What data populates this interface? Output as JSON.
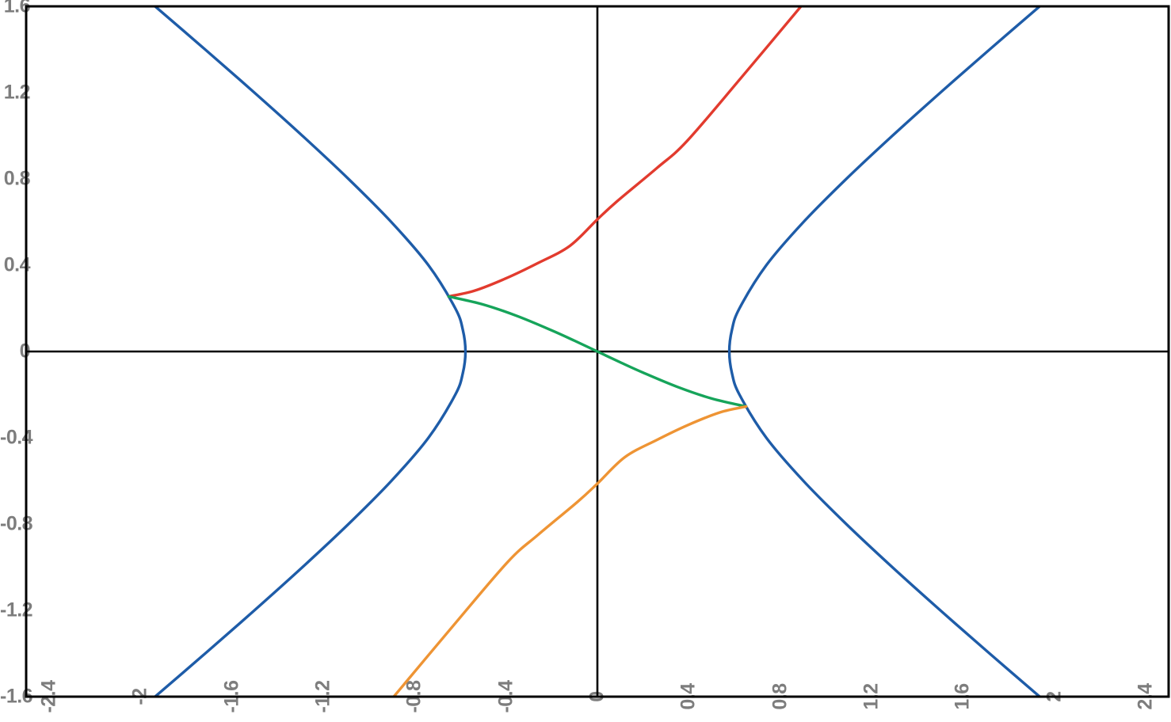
{
  "figure": {
    "background": "#ffffff",
    "border_color": "#000000",
    "axis_line_color": "#000000",
    "tick_label_color": "#7d7d7d"
  },
  "chart_data": {
    "type": "line",
    "title": "",
    "xlabel": "",
    "ylabel": "",
    "grid": false,
    "legend": "none",
    "xlim": [
      -2.5,
      2.5
    ],
    "ylim": [
      -1.6,
      1.6
    ],
    "axes_cross_origin": true,
    "x_tick_values": [
      -2.4,
      -2,
      -1.6,
      -1.2,
      -0.8,
      -0.4,
      0,
      0.4,
      0.8,
      1.2,
      1.6,
      2,
      2.4
    ],
    "x_tick_labels": [
      "-2.4",
      "-2",
      "-1.6",
      "-1.2",
      "-0.8",
      "-0.4",
      "0",
      "0.4",
      "0.8",
      "1.2",
      "1.6",
      "2",
      "2.4"
    ],
    "y_tick_values": [
      1.6,
      1.2,
      0.8,
      0.4,
      0,
      -0.4,
      -0.8,
      -1.2,
      -1.6
    ],
    "y_tick_labels": [
      "1.6",
      "1.2",
      "0.8",
      "0.4",
      "0",
      "-0.4",
      "-0.8",
      "-1.2",
      "-1.6"
    ],
    "series": [
      {
        "name": "hyperbola-left-branch",
        "color": "#1e5ca8",
        "equation_hint": "3x^2-4y^2=1, x<0",
        "points": [
          [
            -1.9577,
            1.62
          ],
          [
            -1.7166,
            1.4
          ],
          [
            -1.5011,
            1.2
          ],
          [
            -1.291,
            1.0
          ],
          [
            -1.0894,
            0.8
          ],
          [
            -0.9018,
            0.6
          ],
          [
            -0.7394,
            0.4
          ],
          [
            -0.6218,
            0.2
          ],
          [
            -0.5888,
            0.1
          ],
          [
            -0.5774,
            0
          ],
          [
            -0.5888,
            -0.1
          ],
          [
            -0.6218,
            -0.2
          ],
          [
            -0.7394,
            -0.4
          ],
          [
            -0.9018,
            -0.6
          ],
          [
            -1.0894,
            -0.8
          ],
          [
            -1.291,
            -1.0
          ],
          [
            -1.5011,
            -1.2
          ],
          [
            -1.7166,
            -1.4
          ],
          [
            -1.9577,
            -1.62
          ]
        ]
      },
      {
        "name": "hyperbola-right-branch",
        "color": "#1e5ca8",
        "equation_hint": "3x^2-4y^2=1, x>0",
        "points": [
          [
            1.9577,
            1.62
          ],
          [
            1.7166,
            1.4
          ],
          [
            1.5011,
            1.2
          ],
          [
            1.291,
            1.0
          ],
          [
            1.0894,
            0.8
          ],
          [
            0.9018,
            0.6
          ],
          [
            0.7394,
            0.4
          ],
          [
            0.6218,
            0.2
          ],
          [
            0.5888,
            0.1
          ],
          [
            0.5774,
            0
          ],
          [
            0.5888,
            -0.1
          ],
          [
            0.6218,
            -0.2
          ],
          [
            0.7394,
            -0.4
          ],
          [
            0.9018,
            -0.6
          ],
          [
            1.0894,
            -0.8
          ],
          [
            1.291,
            -1.0
          ],
          [
            1.5011,
            -1.2
          ],
          [
            1.7166,
            -1.4
          ],
          [
            1.9577,
            -1.62
          ]
        ]
      },
      {
        "name": "upper-branch-red",
        "color": "#e23b2e",
        "points": [
          [
            -0.651,
            0.255
          ],
          [
            -0.537,
            0.282
          ],
          [
            -0.398,
            0.34
          ],
          [
            -0.26,
            0.41
          ],
          [
            -0.12,
            0.49
          ],
          [
            0,
            0.6125
          ],
          [
            0.087,
            0.697
          ],
          [
            0.26,
            0.85
          ],
          [
            0.391,
            0.974
          ],
          [
            0.63,
            1.27
          ],
          [
            0.907,
            1.62
          ]
        ]
      },
      {
        "name": "middle-branch-green",
        "color": "#16a45a",
        "points": [
          [
            -0.651,
            0.255
          ],
          [
            -0.5,
            0.218
          ],
          [
            -0.35,
            0.164
          ],
          [
            -0.2,
            0.098
          ],
          [
            -0.1,
            0.05
          ],
          [
            0,
            0
          ],
          [
            0.1,
            -0.05
          ],
          [
            0.2,
            -0.098
          ],
          [
            0.35,
            -0.164
          ],
          [
            0.5,
            -0.218
          ],
          [
            0.651,
            -0.255
          ]
        ]
      },
      {
        "name": "lower-branch-orange",
        "color": "#ee9434",
        "points": [
          [
            0.651,
            -0.255
          ],
          [
            0.537,
            -0.282
          ],
          [
            0.398,
            -0.34
          ],
          [
            0.26,
            -0.41
          ],
          [
            0.12,
            -0.49
          ],
          [
            0,
            -0.6125
          ],
          [
            -0.087,
            -0.697
          ],
          [
            -0.26,
            -0.85
          ],
          [
            -0.391,
            -0.974
          ],
          [
            -0.63,
            -1.27
          ],
          [
            -0.907,
            -1.62
          ]
        ]
      }
    ]
  }
}
